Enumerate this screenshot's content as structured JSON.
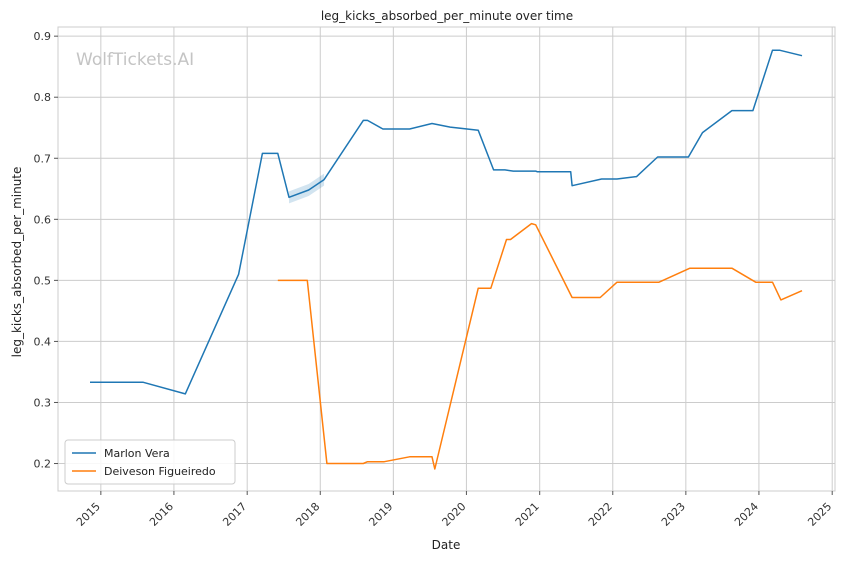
{
  "watermark": "WolfTickets.AI",
  "chart_data": {
    "type": "line",
    "title": "leg_kicks_absorbed_per_minute over time",
    "xlabel": "Date",
    "ylabel": "leg_kicks_absorbed_per_minute",
    "xlim": [
      "2014-06-01",
      "2025-01-15"
    ],
    "ylim": [
      0.155,
      0.915
    ],
    "x_ticks": [
      "2015",
      "2016",
      "2017",
      "2018",
      "2019",
      "2020",
      "2021",
      "2022",
      "2023",
      "2024",
      "2025"
    ],
    "y_ticks": [
      "0.2",
      "0.3",
      "0.4",
      "0.5",
      "0.6",
      "0.7",
      "0.8",
      "0.9"
    ],
    "grid": true,
    "legend_position": "lower-left",
    "series": [
      {
        "name": "Marlon Vera",
        "color": "#1f77b4",
        "points": [
          [
            "2014-11-08",
            0.333
          ],
          [
            "2015-08-01",
            0.333
          ],
          [
            "2016-02-27",
            0.314
          ],
          [
            "2016-11-19",
            0.51
          ],
          [
            "2017-03-18",
            0.708
          ],
          [
            "2017-06-03",
            0.708
          ],
          [
            "2017-07-29",
            0.636
          ],
          [
            "2017-11-04",
            0.648
          ],
          [
            "2018-01-20",
            0.665
          ],
          [
            "2018-08-04",
            0.762
          ],
          [
            "2018-08-25",
            0.762
          ],
          [
            "2018-11-10",
            0.748
          ],
          [
            "2019-03-23",
            0.748
          ],
          [
            "2019-07-13",
            0.757
          ],
          [
            "2019-10-12",
            0.751
          ],
          [
            "2020-02-29",
            0.746
          ],
          [
            "2020-05-16",
            0.681
          ],
          [
            "2020-07-11",
            0.681
          ],
          [
            "2020-08-22",
            0.679
          ],
          [
            "2020-12-12",
            0.679
          ],
          [
            "2020-12-19",
            0.678
          ],
          [
            "2021-06-05",
            0.678
          ],
          [
            "2021-06-12",
            0.655
          ],
          [
            "2021-11-06",
            0.666
          ],
          [
            "2022-01-22",
            0.666
          ],
          [
            "2022-04-30",
            0.67
          ],
          [
            "2022-08-13",
            0.702
          ],
          [
            "2023-01-14",
            0.702
          ],
          [
            "2023-03-25",
            0.742
          ],
          [
            "2023-08-19",
            0.778
          ],
          [
            "2023-12-02",
            0.778
          ],
          [
            "2024-03-09",
            0.877
          ],
          [
            "2024-04-13",
            0.877
          ],
          [
            "2024-08-03",
            0.868
          ]
        ]
      },
      {
        "name": "Deiveson Figueiredo",
        "color": "#ff7f0e",
        "points": [
          [
            "2017-06-03",
            0.5
          ],
          [
            "2017-10-28",
            0.5
          ],
          [
            "2018-02-03",
            0.2
          ],
          [
            "2018-08-04",
            0.2
          ],
          [
            "2018-08-25",
            0.203
          ],
          [
            "2018-11-17",
            0.203
          ],
          [
            "2019-03-23",
            0.211
          ],
          [
            "2019-07-13",
            0.211
          ],
          [
            "2019-07-27",
            0.191
          ],
          [
            "2020-02-29",
            0.487
          ],
          [
            "2020-05-02",
            0.487
          ],
          [
            "2020-07-19",
            0.567
          ],
          [
            "2020-08-08",
            0.567
          ],
          [
            "2020-11-21",
            0.593
          ],
          [
            "2020-12-12",
            0.591
          ],
          [
            "2021-06-12",
            0.472
          ],
          [
            "2021-10-30",
            0.472
          ],
          [
            "2022-01-22",
            0.497
          ],
          [
            "2022-08-20",
            0.497
          ],
          [
            "2023-01-21",
            0.52
          ],
          [
            "2023-08-19",
            0.52
          ],
          [
            "2023-12-16",
            0.497
          ],
          [
            "2024-03-09",
            0.497
          ],
          [
            "2024-04-20",
            0.468
          ],
          [
            "2024-08-03",
            0.483
          ]
        ]
      }
    ]
  }
}
